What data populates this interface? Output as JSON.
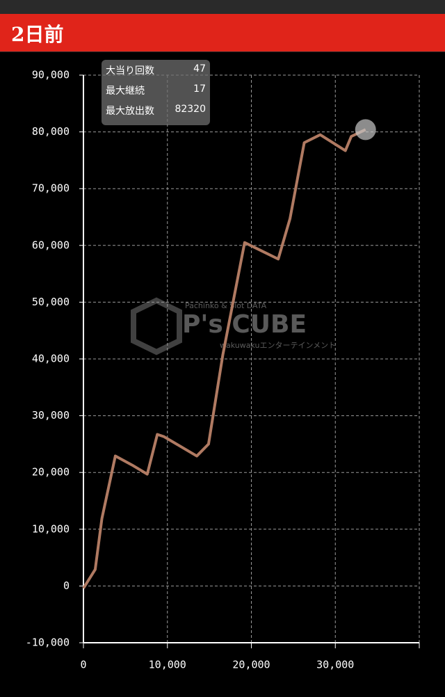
{
  "header": {
    "title": "2日前"
  },
  "stats": {
    "rows": [
      [
        "大当り回数",
        47
      ],
      [
        "最大継続",
        17
      ],
      [
        "最大放出数",
        82320
      ]
    ]
  },
  "watermark": {
    "brand": "P's CUBE",
    "tagline": "Pachinko & Slot DATA",
    "company": "wakuwakuエンターテインメント"
  },
  "chart_data": {
    "type": "line",
    "x": [
      0,
      1400,
      2200,
      3800,
      5800,
      7600,
      8800,
      9600,
      13500,
      14900,
      16600,
      19200,
      23200,
      24600,
      26300,
      28200,
      31200,
      31900,
      33600
    ],
    "series": [
      {
        "color": "#b07a62",
        "values": [
          -400,
          2900,
          11900,
          22900,
          21300,
          19700,
          26700,
          26300,
          22900,
          25000,
          40700,
          60500,
          57600,
          64700,
          78100,
          79500,
          76700,
          79200,
          80400
        ]
      }
    ],
    "xlim": [
      0,
      40000
    ],
    "xticks": [
      0,
      {
        "value": 10000,
        "label": "10,000"
      },
      {
        "value": 20000,
        "label": "20,000"
      },
      {
        "value": 30000,
        "label": "30,000"
      }
    ],
    "ylim": [
      -10000,
      90000
    ],
    "yticks": [
      {
        "value": -10000,
        "label": "-10,000"
      },
      0,
      {
        "value": 10000,
        "label": "10,000"
      },
      {
        "value": 20000,
        "label": "20,000"
      },
      {
        "value": 30000,
        "label": "30,000"
      },
      {
        "value": 40000,
        "label": "40,000"
      },
      {
        "value": 50000,
        "label": "50,000"
      },
      {
        "value": 60000,
        "label": "60,000"
      },
      {
        "value": 70000,
        "label": "70,000"
      },
      {
        "value": 80000,
        "label": "80,000"
      },
      {
        "value": 90000,
        "label": "90,000"
      }
    ],
    "grid": true
  }
}
